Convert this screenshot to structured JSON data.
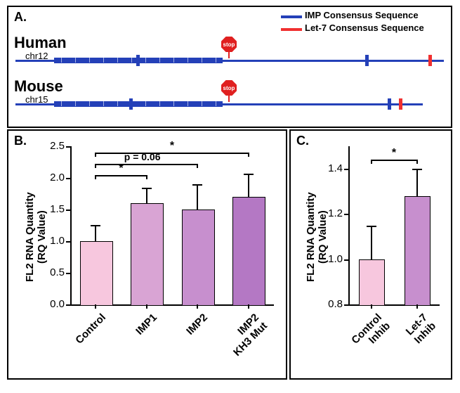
{
  "panels": {
    "a": "A.",
    "b": "B.",
    "c": "C."
  },
  "panelA": {
    "legend": {
      "imp": {
        "label": "IMP Consensus Sequence",
        "color": "#2440b8"
      },
      "let7": {
        "label": "Let-7 Consensus Sequence",
        "color": "#f03030"
      }
    },
    "tracks": [
      {
        "species": "Human",
        "chr": "chr12"
      },
      {
        "species": "Mouse",
        "chr": "chr15"
      }
    ],
    "stop_text": "stop"
  },
  "panelB": {
    "ylabel": "FL2 RNA Quantity\n(RQ Value)",
    "ylim": [
      0,
      2.5
    ],
    "yticks": [
      0.0,
      0.5,
      1.0,
      1.5,
      2.0,
      2.5
    ],
    "categories": [
      "Control",
      "IMP1",
      "IMP2",
      "IMP2\nKH3 Mut"
    ],
    "values": [
      1.0,
      1.6,
      1.5,
      1.7
    ],
    "errors": [
      0.26,
      0.25,
      0.4,
      0.37
    ],
    "bar_colors": [
      "#f7c7de",
      "#d9a4d4",
      "#c78fce",
      "#b478c4"
    ],
    "sig": [
      {
        "from": 0,
        "to": 1,
        "label": "*",
        "y": 2.05
      },
      {
        "from": 0,
        "to": 2,
        "label": "p = 0.06",
        "y": 2.22,
        "is_text": true
      },
      {
        "from": 0,
        "to": 3,
        "label": "*",
        "y": 2.4
      }
    ],
    "axis_color": "#000000",
    "bar_width": 0.62
  },
  "panelC": {
    "ylabel": "FL2 RNA Quantity\n(RQ Value)",
    "ylim": [
      0.8,
      1.5
    ],
    "yticks": [
      0.8,
      1.0,
      1.2,
      1.4
    ],
    "categories": [
      "Control\nInhib",
      "Let-7\nInhib"
    ],
    "values": [
      1.0,
      1.28
    ],
    "errors": [
      0.15,
      0.12
    ],
    "bar_colors": [
      "#f7c7de",
      "#c78fce"
    ],
    "sig": [
      {
        "from": 0,
        "to": 1,
        "label": "*",
        "y": 1.44
      }
    ],
    "axis_color": "#000000",
    "bar_width": 0.55
  }
}
